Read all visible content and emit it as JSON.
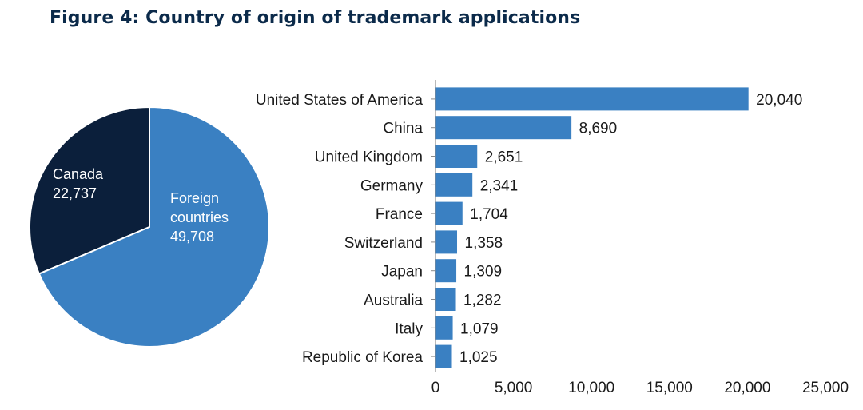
{
  "title": "Figure 4: Country of origin of trademark applications",
  "chart_data": [
    {
      "type": "pie",
      "slices": [
        {
          "label": "Canada",
          "value": 22737,
          "value_label": "22,737",
          "color": "#0b1f3b"
        },
        {
          "label": "Foreign countries",
          "label_lines": [
            "Foreign",
            "countries"
          ],
          "value": 49708,
          "value_label": "49,708",
          "color": "#3a80c2"
        }
      ]
    },
    {
      "type": "bar",
      "orientation": "horizontal",
      "categories": [
        "United States of America",
        "China",
        "United Kingdom",
        "Germany",
        "France",
        "Switzerland",
        "Japan",
        "Australia",
        "Italy",
        "Republic of Korea"
      ],
      "values": [
        20040,
        8690,
        2651,
        2341,
        1704,
        1358,
        1309,
        1282,
        1079,
        1025
      ],
      "value_labels": [
        "20,040",
        "8,690",
        "2,651",
        "2,341",
        "1,704",
        "1,358",
        "1,309",
        "1,282",
        "1,079",
        "1,025"
      ],
      "xlim": [
        0,
        25000
      ],
      "xticks": [
        0,
        5000,
        10000,
        15000,
        20000,
        25000
      ],
      "xtick_labels": [
        "0",
        "5,000",
        "10,000",
        "15,000",
        "20,000",
        "25,000"
      ],
      "bar_color": "#3a80c2",
      "grid": false
    }
  ]
}
